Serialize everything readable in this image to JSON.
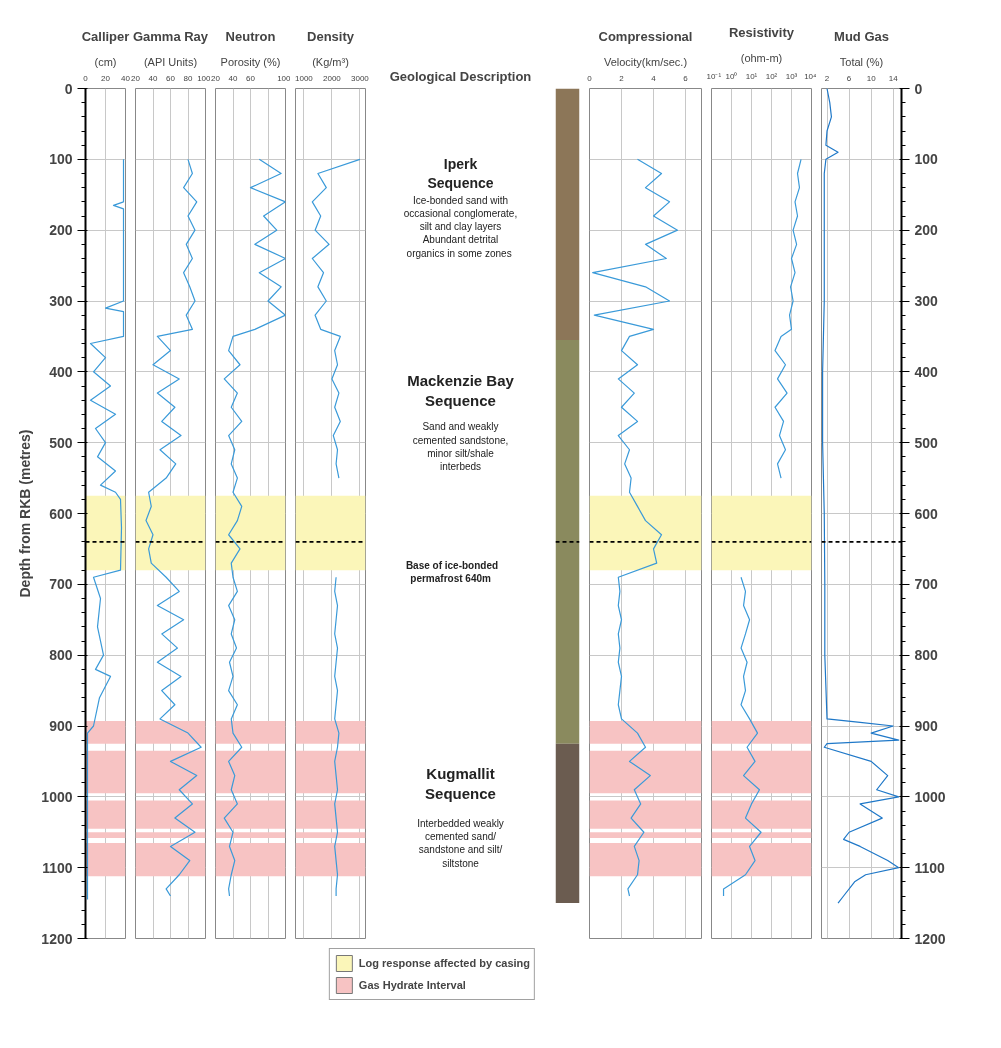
{
  "chart_data": [
    {
      "type": "line",
      "title": "Calliper",
      "subtitle": "(cm)",
      "ylabel": "Depth from RKB (metres)",
      "orientation": "horizontal",
      "xlim": [
        0,
        40
      ],
      "xticks": [
        0,
        20,
        40
      ],
      "ylim": [
        1200,
        0
      ],
      "yticks": [
        0,
        100,
        200,
        300,
        400,
        500,
        600,
        700,
        800,
        900,
        1000,
        1100,
        1200
      ],
      "grid": true,
      "legend": "bottom",
      "series": [
        {
          "color": "#3a9ad9",
          "x": [
            100,
            160,
            165,
            170,
            300,
            310,
            315,
            350,
            360,
            380,
            400,
            420,
            440,
            460,
            480,
            500,
            520,
            540,
            560,
            570,
            580,
            620,
            680,
            690,
            720,
            760,
            800,
            820,
            830,
            860,
            900,
            910,
            1000,
            1100,
            1145
          ],
          "values": [
            38,
            38,
            28,
            38,
            38,
            20,
            38,
            38,
            5,
            20,
            8,
            25,
            5,
            30,
            10,
            20,
            12,
            30,
            15,
            30,
            35,
            36,
            35,
            8,
            15,
            12,
            18,
            10,
            25,
            14,
            8,
            2,
            2,
            2,
            2
          ]
        }
      ],
      "bands": [
        {
          "axis": "y",
          "from": 575,
          "to": 680,
          "color": "#fbf6b9",
          "label": "Log response affected by casing"
        },
        {
          "axis": "y",
          "from": 893,
          "to": 925,
          "color": "#f7c3c3",
          "label": "Gas Hydrate Interval"
        },
        {
          "axis": "y",
          "from": 935,
          "to": 995,
          "color": "#f7c3c3"
        },
        {
          "axis": "y",
          "from": 1005,
          "to": 1045,
          "color": "#f7c3c3"
        },
        {
          "axis": "y",
          "from": 1050,
          "to": 1058,
          "color": "#f7c3c3"
        },
        {
          "axis": "y",
          "from": 1065,
          "to": 1112,
          "color": "#f7c3c3"
        }
      ],
      "ref_lines": [
        {
          "axis": "y",
          "value": 640,
          "color": "#000000",
          "line_style": "dashed"
        }
      ]
    },
    {
      "type": "line",
      "title": "Gamma Ray",
      "subtitle": "(API Units)",
      "orientation": "horizontal",
      "xlim": [
        20,
        100
      ],
      "xticks": [
        20,
        40,
        60,
        80,
        100
      ],
      "ylim": [
        1200,
        0
      ],
      "yticks": [
        0,
        100,
        200,
        300,
        400,
        500,
        600,
        700,
        800,
        900,
        1000,
        1100,
        1200
      ],
      "grid": true,
      "tick_labels": "x",
      "series": [
        {
          "color": "#3a9ad9",
          "x": [
            100,
            120,
            140,
            160,
            180,
            200,
            220,
            240,
            260,
            280,
            300,
            320,
            340,
            350,
            370,
            390,
            410,
            430,
            450,
            470,
            490,
            510,
            530,
            550,
            570,
            590,
            610,
            630,
            650,
            670,
            690,
            710,
            730,
            750,
            770,
            790,
            810,
            830,
            850,
            870,
            890,
            910,
            930,
            950,
            970,
            990,
            1010,
            1030,
            1050,
            1070,
            1090,
            1110,
            1130,
            1140
          ],
          "values": [
            80,
            85,
            75,
            90,
            80,
            88,
            78,
            85,
            75,
            82,
            88,
            78,
            85,
            45,
            60,
            40,
            70,
            45,
            65,
            50,
            72,
            48,
            66,
            55,
            35,
            38,
            32,
            40,
            35,
            38,
            55,
            70,
            45,
            75,
            50,
            68,
            45,
            72,
            50,
            65,
            48,
            80,
            95,
            60,
            90,
            70,
            85,
            65,
            88,
            60,
            82,
            70,
            55,
            60
          ]
        }
      ],
      "bands": [
        {
          "axis": "y",
          "from": 575,
          "to": 680,
          "color": "#fbf6b9"
        },
        {
          "axis": "y",
          "from": 893,
          "to": 925,
          "color": "#f7c3c3"
        },
        {
          "axis": "y",
          "from": 935,
          "to": 995,
          "color": "#f7c3c3"
        },
        {
          "axis": "y",
          "from": 1005,
          "to": 1045,
          "color": "#f7c3c3"
        },
        {
          "axis": "y",
          "from": 1050,
          "to": 1058,
          "color": "#f7c3c3"
        },
        {
          "axis": "y",
          "from": 1065,
          "to": 1112,
          "color": "#f7c3c3"
        }
      ],
      "ref_lines": [
        {
          "axis": "y",
          "value": 640,
          "color": "#000000",
          "line_style": "dashed"
        }
      ]
    },
    {
      "type": "line",
      "title": "Neutron",
      "subtitle": "Porosity (%)",
      "orientation": "horizontal",
      "xlim": [
        20,
        100
      ],
      "xticks": [
        20,
        40,
        60,
        {
          "value": 80,
          "label": null
        },
        100
      ],
      "ylim": [
        1200,
        0
      ],
      "yticks": [
        0,
        100,
        200,
        300,
        400,
        500,
        600,
        700,
        800,
        900,
        1000,
        1100,
        1200
      ],
      "grid": true,
      "tick_labels": "x",
      "series": [
        {
          "color": "#3a9ad9",
          "x": [
            100,
            120,
            140,
            160,
            180,
            200,
            220,
            240,
            260,
            280,
            300,
            320,
            340,
            350,
            370,
            390,
            410,
            430,
            450,
            470,
            490,
            510,
            530,
            550,
            570,
            590,
            610,
            630,
            650,
            670,
            690,
            710,
            730,
            750,
            770,
            790,
            810,
            830,
            850,
            870,
            890,
            910,
            930,
            950,
            970,
            990,
            1010,
            1030,
            1050,
            1070,
            1090,
            1110,
            1130,
            1140
          ],
          "values": [
            70,
            95,
            60,
            100,
            75,
            90,
            65,
            100,
            70,
            95,
            80,
            100,
            65,
            40,
            35,
            48,
            30,
            45,
            38,
            50,
            35,
            42,
            38,
            45,
            40,
            50,
            45,
            35,
            48,
            38,
            40,
            45,
            35,
            42,
            38,
            44,
            36,
            40,
            35,
            45,
            38,
            40,
            50,
            35,
            42,
            38,
            45,
            30,
            40,
            36,
            42,
            38,
            35,
            36
          ]
        }
      ],
      "bands": [
        {
          "axis": "y",
          "from": 575,
          "to": 680,
          "color": "#fbf6b9"
        },
        {
          "axis": "y",
          "from": 893,
          "to": 925,
          "color": "#f7c3c3"
        },
        {
          "axis": "y",
          "from": 935,
          "to": 995,
          "color": "#f7c3c3"
        },
        {
          "axis": "y",
          "from": 1005,
          "to": 1045,
          "color": "#f7c3c3"
        },
        {
          "axis": "y",
          "from": 1050,
          "to": 1058,
          "color": "#f7c3c3"
        },
        {
          "axis": "y",
          "from": 1065,
          "to": 1112,
          "color": "#f7c3c3"
        }
      ],
      "ref_lines": [
        {
          "axis": "y",
          "value": 640,
          "color": "#000000",
          "line_style": "dashed"
        }
      ]
    },
    {
      "type": "line",
      "title": "Density",
      "subtitle": "(Kg/m³)",
      "orientation": "horizontal",
      "xlim": [
        700,
        3200
      ],
      "xticks": [
        1000,
        2000,
        3000
      ],
      "ylim": [
        1200,
        0
      ],
      "yticks": [
        0,
        100,
        200,
        300,
        400,
        500,
        600,
        700,
        800,
        900,
        1000,
        1100,
        1200
      ],
      "grid": true,
      "tick_labels": "x",
      "series": [
        {
          "color": "#3a9ad9",
          "x": [
            100,
            120,
            140,
            160,
            180,
            200,
            220,
            240,
            260,
            280,
            300,
            320,
            340,
            350,
            370,
            390,
            410,
            430,
            450,
            470,
            490,
            510,
            530,
            550,
            570,
            590,
            610,
            630,
            650,
            670,
            690,
            710,
            730,
            750,
            770,
            790,
            810,
            830,
            850,
            870,
            890,
            910,
            930,
            950,
            970,
            990,
            1010,
            1030,
            1050,
            1070,
            1090,
            1110,
            1130,
            1140
          ],
          "values": [
            3000,
            1500,
            1800,
            1300,
            1600,
            1400,
            1900,
            1300,
            1700,
            1500,
            1800,
            1400,
            1600,
            2300,
            2100,
            2200,
            2000,
            2250,
            2100,
            2300,
            2050,
            2200,
            2150,
            2250,
            null,
            null,
            null,
            null,
            null,
            null,
            2150,
            2100,
            2200,
            2150,
            2100,
            2200,
            2150,
            2100,
            2200,
            2150,
            2100,
            2250,
            2200,
            2100,
            2150,
            2200,
            2100,
            2150,
            2200,
            2100,
            2150,
            2200,
            2150,
            2150
          ]
        }
      ],
      "bands": [
        {
          "axis": "y",
          "from": 575,
          "to": 680,
          "color": "#fbf6b9"
        },
        {
          "axis": "y",
          "from": 893,
          "to": 925,
          "color": "#f7c3c3"
        },
        {
          "axis": "y",
          "from": 935,
          "to": 995,
          "color": "#f7c3c3"
        },
        {
          "axis": "y",
          "from": 1005,
          "to": 1045,
          "color": "#f7c3c3"
        },
        {
          "axis": "y",
          "from": 1050,
          "to": 1058,
          "color": "#f7c3c3"
        },
        {
          "axis": "y",
          "from": 1065,
          "to": 1112,
          "color": "#f7c3c3"
        }
      ],
      "ref_lines": [
        {
          "axis": "y",
          "value": 640,
          "color": "#000000",
          "line_style": "dashed"
        }
      ]
    },
    {
      "type": "other",
      "title": "Geological Description",
      "annotations": [
        "Iperk\nSequence",
        "Ice-bonded sand with\noccasional conglomerate,\nsilt and clay layers\nAbundant detrital\norganics  in some zones",
        "Mackenzie Bay\nSequence",
        "Sand and weakly\ncemented sandstone,\nminor silt/shale\ninterbeds",
        "Base of ice-bonded\npermafrost  640m",
        "Kugmallit\nSequence",
        "Interbedded weakly\ncemented sand/\nsandstone and silt/\nsiltstone"
      ]
    },
    {
      "type": "bar",
      "stacked": true,
      "categories": [
        null
      ],
      "ylim": [
        1200,
        0
      ],
      "tick_labels": false,
      "series": [
        {
          "color": "#8c7658",
          "values": [
            355
          ]
        },
        {
          "color": "#8a8a5e",
          "values": [
            570
          ]
        },
        {
          "color": "#6b5c50",
          "values": [
            225
          ]
        }
      ],
      "ref_lines": [
        {
          "axis": "y",
          "value": 640,
          "color": "#000000",
          "line_style": "dashed"
        }
      ]
    },
    {
      "type": "line",
      "title": "Compressional",
      "subtitle": "Velocity(km/sec.)",
      "orientation": "horizontal",
      "xlim": [
        0,
        7
      ],
      "xticks": [
        0,
        2,
        4,
        6
      ],
      "ylim": [
        1200,
        0
      ],
      "yticks": [
        0,
        100,
        200,
        300,
        400,
        500,
        600,
        700,
        800,
        900,
        1000,
        1100,
        1200
      ],
      "grid": true,
      "tick_labels": "x",
      "series": [
        {
          "color": "#3a9ad9",
          "x": [
            100,
            120,
            140,
            160,
            180,
            200,
            220,
            240,
            260,
            280,
            300,
            320,
            340,
            350,
            370,
            390,
            410,
            430,
            450,
            470,
            490,
            510,
            530,
            550,
            570,
            590,
            610,
            630,
            650,
            670,
            690,
            710,
            730,
            750,
            770,
            790,
            810,
            830,
            850,
            870,
            890,
            910,
            930,
            950,
            970,
            990,
            1010,
            1030,
            1050,
            1070,
            1090,
            1110,
            1130,
            1140
          ],
          "values": [
            3,
            4.5,
            3.5,
            5,
            4,
            5.5,
            3.5,
            4.8,
            0.2,
            3.5,
            5,
            0.3,
            4,
            2.5,
            2,
            3,
            1.8,
            2.8,
            2,
            3,
            1.8,
            2.5,
            2.2,
            2.6,
            2.5,
            3,
            3.5,
            4.5,
            4,
            4.2,
            1.8,
            1.9,
            1.8,
            2,
            1.8,
            1.9,
            1.8,
            2,
            1.9,
            1.8,
            2,
            3,
            3.5,
            2.5,
            3.8,
            2.8,
            3.2,
            2.6,
            3.4,
            2.8,
            3.1,
            3,
            2.4,
            2.5
          ]
        }
      ],
      "bands": [
        {
          "axis": "y",
          "from": 575,
          "to": 680,
          "color": "#fbf6b9"
        },
        {
          "axis": "y",
          "from": 893,
          "to": 925,
          "color": "#f7c3c3"
        },
        {
          "axis": "y",
          "from": 935,
          "to": 995,
          "color": "#f7c3c3"
        },
        {
          "axis": "y",
          "from": 1005,
          "to": 1045,
          "color": "#f7c3c3"
        },
        {
          "axis": "y",
          "from": 1050,
          "to": 1058,
          "color": "#f7c3c3"
        },
        {
          "axis": "y",
          "from": 1065,
          "to": 1112,
          "color": "#f7c3c3"
        }
      ],
      "ref_lines": [
        {
          "axis": "y",
          "value": 640,
          "color": "#000000",
          "line_style": "dashed"
        }
      ]
    },
    {
      "type": "line",
      "title": "Resistivity",
      "subtitle": "(ohm-m)",
      "orientation": "horizontal",
      "log": "x",
      "xlim": [
        0.1,
        10000
      ],
      "xticks": [
        {
          "value": 0.1,
          "label": "10⁻¹"
        },
        {
          "value": 1,
          "label": "10⁰"
        },
        {
          "value": 10,
          "label": "10¹"
        },
        {
          "value": 100,
          "label": "10²"
        },
        {
          "value": 1000,
          "label": "10³"
        },
        {
          "value": 10000,
          "label": "10⁴"
        }
      ],
      "ylim": [
        1200,
        0
      ],
      "yticks": [
        0,
        100,
        200,
        300,
        400,
        500,
        600,
        700,
        800,
        900,
        1000,
        1100,
        1200
      ],
      "grid": true,
      "tick_labels": "x",
      "series": [
        {
          "color": "#3a9ad9",
          "x": [
            100,
            120,
            140,
            160,
            180,
            200,
            220,
            240,
            260,
            280,
            300,
            320,
            340,
            350,
            370,
            390,
            410,
            430,
            450,
            470,
            490,
            510,
            530,
            550,
            570,
            590,
            610,
            630,
            650,
            670,
            690,
            710,
            730,
            750,
            770,
            790,
            810,
            830,
            850,
            870,
            890,
            910,
            930,
            950,
            970,
            990,
            1010,
            1030,
            1050,
            1070,
            1090,
            1110,
            1130,
            1140
          ],
          "values": [
            3000,
            2000,
            2500,
            1500,
            2000,
            1200,
            1800,
            1000,
            1500,
            900,
            1200,
            800,
            1000,
            300,
            150,
            500,
            200,
            600,
            150,
            400,
            250,
            500,
            200,
            300,
            null,
            null,
            null,
            null,
            null,
            null,
            3,
            5,
            4,
            8,
            5,
            3,
            6,
            4,
            5,
            3,
            8,
            20,
            6,
            15,
            4,
            25,
            10,
            5,
            30,
            8,
            15,
            5,
            0.4,
            0.4
          ]
        }
      ],
      "bands": [
        {
          "axis": "y",
          "from": 575,
          "to": 680,
          "color": "#fbf6b9"
        },
        {
          "axis": "y",
          "from": 893,
          "to": 925,
          "color": "#f7c3c3"
        },
        {
          "axis": "y",
          "from": 935,
          "to": 995,
          "color": "#f7c3c3"
        },
        {
          "axis": "y",
          "from": 1005,
          "to": 1045,
          "color": "#f7c3c3"
        },
        {
          "axis": "y",
          "from": 1050,
          "to": 1058,
          "color": "#f7c3c3"
        },
        {
          "axis": "y",
          "from": 1065,
          "to": 1112,
          "color": "#f7c3c3"
        }
      ],
      "ref_lines": [
        {
          "axis": "y",
          "value": 640,
          "color": "#000000",
          "line_style": "dashed"
        }
      ]
    },
    {
      "type": "line",
      "title": "Mud Gas",
      "subtitle": "Total (%)",
      "orientation": "horizontal",
      "xlim": [
        1,
        15.5
      ],
      "xticks": [
        2,
        6,
        10,
        14
      ],
      "ylim": [
        1200,
        0
      ],
      "yticks": [
        0,
        100,
        200,
        300,
        400,
        500,
        600,
        700,
        800,
        900,
        1000,
        1100,
        1200
      ],
      "grid": true,
      "series": [
        {
          "color": "#1f78c8",
          "x": [
            0,
            20,
            40,
            60,
            80,
            90,
            100,
            120,
            200,
            300,
            400,
            500,
            600,
            700,
            800,
            890,
            895,
            900,
            910,
            920,
            925,
            930,
            950,
            970,
            990,
            1000,
            1010,
            1030,
            1050,
            1060,
            1070,
            1090,
            1100,
            1110,
            1120,
            1140,
            1150
          ],
          "values": [
            2,
            2.5,
            2.8,
            2,
            1.8,
            4,
            1.8,
            1.5,
            1.5,
            1.5,
            1.2,
            1.2,
            1.5,
            1.6,
            1.6,
            2,
            8,
            14,
            10,
            15,
            2,
            1.5,
            10,
            13,
            11,
            15,
            8,
            12,
            6,
            5,
            8,
            13,
            15,
            9,
            7,
            5,
            4
          ]
        }
      ],
      "ref_lines": [
        {
          "axis": "y",
          "value": 640,
          "color": "#000000",
          "line_style": "dashed"
        }
      ]
    }
  ]
}
